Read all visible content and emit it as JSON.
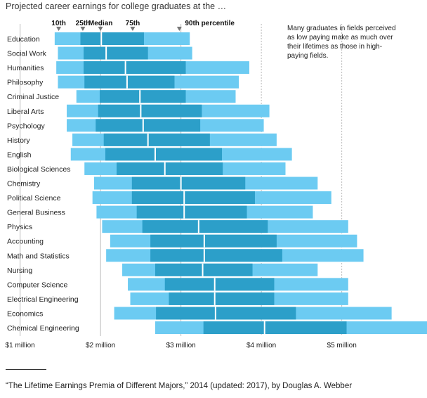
{
  "title": "Projected career earnings for college graduates at the …",
  "percentile_labels": [
    "10th",
    "25th",
    "Median",
    "75th",
    "90th percentile"
  ],
  "annotation": [
    "Many graduates in fields perceived",
    "as low paying make as much over",
    "their lifetimes as those in high-",
    "paying fields."
  ],
  "source": "“The Lifetime Earnings Premia of Different Majors,” 2014 (updated: 2017), by Douglas A. Webber",
  "colors": {
    "light_band": "#6ccbf2",
    "dark_band": "#2c9fc9",
    "median_line": "#ffffff",
    "grid": "#bbbbbb",
    "marker": "#777777"
  },
  "chart_data": {
    "type": "range-bar",
    "title": "Projected career earnings for college graduates at the …",
    "xlabel": "",
    "ylabel": "",
    "xlim": [
      0.75,
      5.99
    ],
    "x_ticks": [
      1,
      2,
      3,
      4,
      5
    ],
    "x_tick_labels": [
      "$1 million",
      "$2 million",
      "$3 million",
      "$4 million",
      "$5 million"
    ],
    "percentile_markers": {
      "p10": 1.48,
      "p25": 1.78,
      "median": 2.0,
      "p75": 2.4,
      "p90": 2.98
    },
    "series_keys": [
      "p10",
      "p25",
      "median",
      "p75",
      "p90"
    ],
    "categories": [
      "Education",
      "Social Work",
      "Humanities",
      "Philosophy",
      "Criminal Justice",
      "Liberal Arts",
      "Psychology",
      "History",
      "English",
      "Biological Sciences",
      "Chemistry",
      "Political Science",
      "General Business",
      "Physics",
      "Accounting",
      "Math and Statistics",
      "Nursing",
      "Computer Science",
      "Electrical Engineering",
      "Economics",
      "Chemical Engineering"
    ],
    "rows": [
      {
        "name": "Education",
        "p10": 1.43,
        "p25": 1.75,
        "median": 2.01,
        "p75": 2.54,
        "p90": 3.11
      },
      {
        "name": "Social Work",
        "p10": 1.47,
        "p25": 1.79,
        "median": 2.07,
        "p75": 2.59,
        "p90": 3.14
      },
      {
        "name": "Humanities",
        "p10": 1.45,
        "p25": 1.79,
        "median": 2.31,
        "p75": 3.06,
        "p90": 3.85
      },
      {
        "name": "Philosophy",
        "p10": 1.47,
        "p25": 1.8,
        "median": 2.33,
        "p75": 2.92,
        "p90": 3.72
      },
      {
        "name": "Criminal Justice",
        "p10": 1.7,
        "p25": 1.99,
        "median": 2.49,
        "p75": 3.06,
        "p90": 3.68
      },
      {
        "name": "Liberal Arts",
        "p10": 1.58,
        "p25": 1.97,
        "median": 2.5,
        "p75": 3.26,
        "p90": 4.1
      },
      {
        "name": "Psychology",
        "p10": 1.58,
        "p25": 1.94,
        "median": 2.53,
        "p75": 3.24,
        "p90": 4.03
      },
      {
        "name": "History",
        "p10": 1.65,
        "p25": 2.04,
        "median": 2.59,
        "p75": 3.36,
        "p90": 4.19
      },
      {
        "name": "English",
        "p10": 1.63,
        "p25": 2.06,
        "median": 2.68,
        "p75": 3.51,
        "p90": 4.38
      },
      {
        "name": "Biological Sciences",
        "p10": 1.8,
        "p25": 2.2,
        "median": 2.8,
        "p75": 3.52,
        "p90": 4.3
      },
      {
        "name": "Chemistry",
        "p10": 1.92,
        "p25": 2.39,
        "median": 3.0,
        "p75": 3.8,
        "p90": 4.7
      },
      {
        "name": "Political Science",
        "p10": 1.9,
        "p25": 2.39,
        "median": 3.04,
        "p75": 3.92,
        "p90": 4.87
      },
      {
        "name": "General Business",
        "p10": 1.95,
        "p25": 2.45,
        "median": 3.04,
        "p75": 3.82,
        "p90": 4.64
      },
      {
        "name": "Physics",
        "p10": 2.02,
        "p25": 2.52,
        "median": 3.22,
        "p75": 4.08,
        "p90": 5.08
      },
      {
        "name": "Accounting",
        "p10": 2.12,
        "p25": 2.62,
        "median": 3.29,
        "p75": 4.19,
        "p90": 5.19
      },
      {
        "name": "Math and Statistics",
        "p10": 2.07,
        "p25": 2.62,
        "median": 3.29,
        "p75": 4.26,
        "p90": 5.27
      },
      {
        "name": "Nursing",
        "p10": 2.27,
        "p25": 2.68,
        "median": 3.27,
        "p75": 3.89,
        "p90": 4.7
      },
      {
        "name": "Computer Science",
        "p10": 2.34,
        "p25": 2.8,
        "median": 3.42,
        "p75": 4.16,
        "p90": 5.08
      },
      {
        "name": "Electrical Engineering",
        "p10": 2.37,
        "p25": 2.85,
        "median": 3.42,
        "p75": 4.16,
        "p90": 5.08
      },
      {
        "name": "Economics",
        "p10": 2.17,
        "p25": 2.69,
        "median": 3.43,
        "p75": 4.43,
        "p90": 5.62
      },
      {
        "name": "Chemical Engineering",
        "p10": 2.68,
        "p25": 3.28,
        "median": 4.04,
        "p75": 5.06,
        "p90": 6.06
      }
    ]
  }
}
